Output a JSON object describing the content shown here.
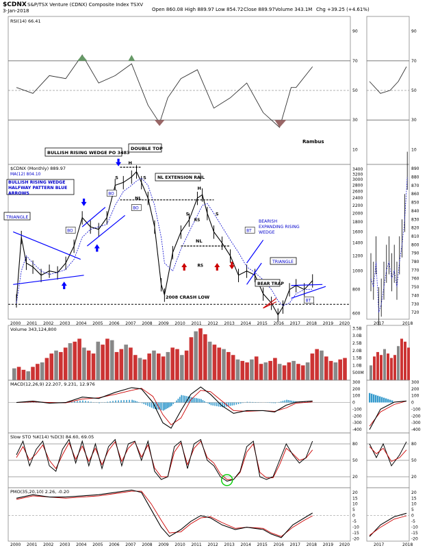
{
  "header": {
    "symbol": "$CDNX",
    "name": "S&P/TSX Venture (CDNX) Composite Index  TSXV",
    "date": "3-Jan-2018",
    "open": "Open 860.08",
    "high": "High 889.97",
    "low": "Low 854.72",
    "close": "Close 889.97",
    "volume": "Volume 343.1M",
    "chg": "Chg +39.25 (+4.61%)"
  },
  "watermark": "Rambus",
  "colors": {
    "price": "#000000",
    "ma": "#0000cc",
    "signal": "#cc0000",
    "volume_up": "#cc3333",
    "volume_down": "#888888",
    "histogram": "#3399cc",
    "trendline": "#0000ff",
    "rsi_fill": "#669966",
    "rsi_fill_low": "#996666",
    "annotation_text": "#0000cc",
    "green_circle": "#00cc00"
  },
  "annotations": {
    "rising_wedge": "BULLISH RISING WEDGE PO 3483",
    "double_top": "DOUBLE TOP",
    "halfway": "BULLISH RISING WEDGE HALFWAY PATTERN BLUE ARROWS",
    "triangle_left": "TRIANGLE",
    "nl_rail": "NL EXTENSION RAIL",
    "bearish": "BEARISH EXPANDING RISING WEDGE",
    "triangle_right": "TRIANGLE",
    "bear_trap": "BEAR TRAP",
    "crash": "2008 CRASH LOW",
    "bo": "BO",
    "bt": "BT",
    "s": "S",
    "h": "H",
    "nl": "NL",
    "rs": "RS"
  },
  "chart_data": [
    {
      "type": "line",
      "panel": "rsi",
      "title": "RSI(14) 66.41",
      "y_ticks": [
        10,
        30,
        50,
        70,
        90
      ],
      "ylim": [
        0,
        100
      ],
      "x": [
        2000.0,
        2001.0,
        2002.0,
        2003.0,
        2004.0,
        2005.0,
        2006.0,
        2007.0,
        2008.0,
        2008.7,
        2009.2,
        2010.0,
        2011.0,
        2012.0,
        2013.0,
        2014.0,
        2015.0,
        2016.0,
        2016.7,
        2017.0,
        2018.0
      ],
      "values": [
        52,
        48,
        60,
        58,
        74,
        55,
        60,
        68,
        40,
        28,
        45,
        58,
        64,
        38,
        45,
        55,
        35,
        25,
        52,
        52,
        66
      ]
    },
    {
      "type": "bar",
      "panel": "price",
      "title": "$CDNX (Monthly) 889.97",
      "series_note": "MA(12) 804.10",
      "scale": "log",
      "y_ticks": [
        600,
        800,
        1000,
        1200,
        1400,
        1600,
        1800,
        2000,
        2200,
        2400,
        2600,
        2800,
        3000,
        3200,
        3400
      ],
      "x_ticks": [
        2000,
        2001,
        2002,
        2003,
        2004,
        2005,
        2006,
        2007,
        2008,
        2009,
        2010,
        2011,
        2012,
        2013,
        2014,
        2015,
        2016,
        2017,
        2018,
        2019,
        2020
      ],
      "x": [
        2000.0,
        2000.3,
        2000.6,
        2001.0,
        2001.5,
        2002.0,
        2002.5,
        2003.0,
        2003.5,
        2004.0,
        2004.5,
        2005.0,
        2005.5,
        2006.0,
        2006.5,
        2007.0,
        2007.3,
        2007.6,
        2008.0,
        2008.4,
        2008.8,
        2009.0,
        2009.5,
        2010.0,
        2010.5,
        2011.0,
        2011.3,
        2011.6,
        2012.0,
        2012.5,
        2013.0,
        2013.5,
        2014.0,
        2014.5,
        2015.0,
        2015.5,
        2015.9,
        2016.2,
        2016.6,
        2017.0,
        2017.5,
        2018.0
      ],
      "values": [
        700,
        1500,
        1100,
        1050,
        950,
        1000,
        980,
        1100,
        1350,
        1900,
        1700,
        1650,
        1900,
        2800,
        2900,
        3100,
        3300,
        2900,
        2400,
        1700,
        850,
        750,
        1250,
        1600,
        1850,
        2400,
        2500,
        2000,
        1600,
        1400,
        1200,
        950,
        1000,
        950,
        760,
        680,
        590,
        650,
        800,
        840,
        800,
        890
      ],
      "ma_values": [
        680,
        1000,
        1200,
        1100,
        1000,
        960,
        980,
        1020,
        1150,
        1500,
        1650,
        1700,
        1750,
        2200,
        2600,
        2800,
        2950,
        3050,
        2800,
        2200,
        1500,
        1100,
        1000,
        1300,
        1600,
        1950,
        2200,
        2250,
        2000,
        1700,
        1450,
        1250,
        1050,
        980,
        900,
        800,
        700,
        660,
        680,
        760,
        800,
        804
      ]
    },
    {
      "type": "bar",
      "panel": "volume",
      "title": "Volume 343,124,800",
      "y_ticks_label": [
        "500M",
        "1.0B",
        "1.5B",
        "2.0B",
        "2.5B",
        "3.0B",
        "3.5B"
      ],
      "ylim": [
        0,
        3.7
      ],
      "unit": "billions",
      "values": [
        0.8,
        0.9,
        0.7,
        0.6,
        0.9,
        1.1,
        1.2,
        1.5,
        1.8,
        2.0,
        1.9,
        2.2,
        2.5,
        2.6,
        2.8,
        2.2,
        2.0,
        1.8,
        2.6,
        2.4,
        2.8,
        2.7,
        1.9,
        2.1,
        2.4,
        2.2,
        1.7,
        1.5,
        1.4,
        1.8,
        2.0,
        1.8,
        1.6,
        1.9,
        2.2,
        2.1,
        1.7,
        2.0,
        2.9,
        3.3,
        3.5,
        3.1,
        2.6,
        2.4,
        2.2,
        2.1,
        1.9,
        1.7,
        1.4,
        1.3,
        1.2,
        1.4,
        1.6,
        1.1,
        1.2,
        1.3,
        1.5,
        1.1,
        1.0,
        1.2,
        1.3,
        1.1,
        1.0,
        1.2,
        1.8,
        2.1,
        2.0,
        1.6,
        1.3,
        1.2,
        1.4,
        1.5
      ]
    },
    {
      "type": "line",
      "panel": "macd",
      "title": "MACD(12,26,9) 22.207, 9.231, 12.976",
      "y_ticks": [
        -400,
        -300,
        -200,
        -100,
        0,
        100,
        200,
        300
      ],
      "ylim": [
        -450,
        330
      ],
      "x": [
        2000.0,
        2001.0,
        2002.0,
        2003.0,
        2004.0,
        2005.0,
        2006.0,
        2007.0,
        2007.6,
        2008.3,
        2008.9,
        2009.4,
        2010.0,
        2010.6,
        2011.2,
        2011.8,
        2012.5,
        2013.2,
        2014.0,
        2015.0,
        2015.7,
        2016.4,
        2017.0,
        2018.0
      ],
      "values": [
        0,
        20,
        -10,
        0,
        80,
        60,
        150,
        220,
        200,
        0,
        -300,
        -380,
        -120,
        120,
        230,
        120,
        -50,
        -160,
        -120,
        -120,
        -140,
        -40,
        5,
        22
      ],
      "signal": [
        0,
        10,
        0,
        -5,
        50,
        70,
        120,
        180,
        210,
        90,
        -180,
        -330,
        -230,
        40,
        180,
        160,
        20,
        -120,
        -130,
        -120,
        -130,
        -80,
        -10,
        9
      ]
    },
    {
      "type": "line",
      "panel": "sto",
      "title": "Slow STO %K(14) %D(3) 84.60, 69.05",
      "y_ticks": [
        20,
        50,
        80
      ],
      "ylim": [
        0,
        100
      ],
      "x": [
        2000.0,
        2000.4,
        2000.8,
        2001.2,
        2001.6,
        2002.0,
        2002.4,
        2002.8,
        2003.2,
        2003.6,
        2004.0,
        2004.4,
        2004.8,
        2005.2,
        2005.6,
        2006.0,
        2006.4,
        2006.8,
        2007.2,
        2007.6,
        2008.0,
        2008.4,
        2008.8,
        2009.2,
        2009.6,
        2010.0,
        2010.4,
        2010.8,
        2011.2,
        2011.6,
        2012.0,
        2012.4,
        2012.8,
        2013.2,
        2013.6,
        2014.0,
        2014.4,
        2014.8,
        2015.2,
        2015.6,
        2016.0,
        2016.4,
        2016.8,
        2017.2,
        2017.6,
        2018.0
      ],
      "values": [
        60,
        85,
        40,
        70,
        85,
        40,
        30,
        70,
        88,
        45,
        85,
        40,
        80,
        35,
        75,
        88,
        40,
        80,
        85,
        50,
        85,
        30,
        15,
        20,
        75,
        85,
        35,
        80,
        88,
        50,
        40,
        20,
        12,
        15,
        30,
        75,
        85,
        20,
        15,
        20,
        50,
        80,
        60,
        45,
        55,
        85
      ],
      "signal": [
        55,
        75,
        50,
        62,
        78,
        50,
        35,
        60,
        82,
        52,
        76,
        48,
        72,
        42,
        68,
        84,
        48,
        72,
        84,
        56,
        78,
        36,
        20,
        20,
        65,
        82,
        42,
        72,
        85,
        55,
        45,
        25,
        15,
        15,
        28,
        65,
        80,
        28,
        18,
        18,
        42,
        72,
        62,
        50,
        54,
        69
      ]
    },
    {
      "type": "line",
      "panel": "pmo",
      "title": "PMO(35,20,10) 2.26, -0.20",
      "y_ticks": [
        -20,
        -15,
        -10,
        -5,
        0,
        5,
        10,
        15,
        20
      ],
      "ylim": [
        -22,
        24
      ],
      "x": [
        2000.0,
        2001.0,
        2002.0,
        2003.0,
        2004.0,
        2005.0,
        2006.0,
        2007.0,
        2007.6,
        2008.2,
        2008.8,
        2009.3,
        2010.0,
        2010.6,
        2011.2,
        2011.8,
        2012.5,
        2013.3,
        2014.0,
        2015.0,
        2015.5,
        2016.1,
        2016.8,
        2017.5,
        2018.0
      ],
      "values": [
        15,
        18,
        16,
        16,
        17,
        18,
        20,
        22,
        20,
        5,
        -10,
        -18,
        -12,
        -5,
        0,
        -2,
        -8,
        -12,
        -10,
        -12,
        -16,
        -19,
        -8,
        -2,
        2.26
      ],
      "signal": [
        14,
        17,
        16,
        15,
        16,
        17,
        19,
        21,
        21,
        10,
        -4,
        -15,
        -14,
        -7,
        -2,
        -1,
        -6,
        -11,
        -10,
        -11,
        -15,
        -18,
        -10,
        -4,
        -0.2
      ]
    }
  ]
}
